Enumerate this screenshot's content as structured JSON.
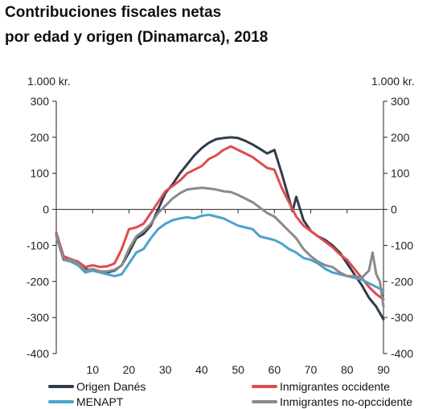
{
  "chart_data": {
    "type": "line",
    "title_line1": "Contribuciones fiscales netas",
    "title_line2": "por edad y origen (Dinamarca), 2018",
    "unit_left": "1.000 kr.",
    "unit_right": "1.000 kr.",
    "xlim": [
      0,
      90
    ],
    "ylim": [
      -400,
      300
    ],
    "x_ticks": [
      10,
      20,
      30,
      40,
      50,
      60,
      70,
      80,
      90
    ],
    "y_ticks": [
      300,
      200,
      100,
      0,
      -100,
      -200,
      -300,
      -400
    ],
    "grid": false,
    "legend_position": "bottom",
    "series": [
      {
        "name": "Origen Danés",
        "color": "#2f3d4a",
        "x": [
          0,
          2,
          4,
          6,
          8,
          10,
          12,
          14,
          16,
          18,
          20,
          22,
          24,
          26,
          28,
          30,
          32,
          34,
          36,
          38,
          40,
          42,
          44,
          46,
          48,
          50,
          52,
          54,
          56,
          58,
          60,
          62,
          64,
          65,
          66,
          68,
          70,
          72,
          74,
          76,
          78,
          80,
          82,
          84,
          86,
          88,
          90
        ],
        "y": [
          -65,
          -130,
          -140,
          -148,
          -165,
          -170,
          -172,
          -175,
          -170,
          -155,
          -120,
          -80,
          -68,
          -45,
          0,
          45,
          70,
          100,
          125,
          150,
          170,
          185,
          195,
          198,
          200,
          198,
          190,
          180,
          168,
          155,
          165,
          100,
          30,
          -5,
          35,
          -30,
          -60,
          -75,
          -85,
          -100,
          -120,
          -150,
          -180,
          -210,
          -245,
          -270,
          -305
        ]
      },
      {
        "name": "Inmigrantes occidente",
        "color": "#e04a52",
        "x": [
          0,
          2,
          4,
          6,
          8,
          10,
          12,
          14,
          16,
          18,
          20,
          22,
          24,
          26,
          28,
          30,
          32,
          34,
          36,
          38,
          40,
          42,
          44,
          46,
          48,
          50,
          52,
          54,
          56,
          58,
          60,
          62,
          64,
          66,
          68,
          70,
          72,
          74,
          76,
          78,
          80,
          82,
          84,
          86,
          88,
          90
        ],
        "y": [
          -65,
          -130,
          -138,
          -145,
          -160,
          -155,
          -160,
          -158,
          -150,
          -110,
          -55,
          -50,
          -40,
          -10,
          20,
          50,
          65,
          80,
          100,
          110,
          120,
          140,
          150,
          165,
          175,
          165,
          155,
          145,
          130,
          115,
          110,
          60,
          20,
          -20,
          -45,
          -60,
          -75,
          -90,
          -105,
          -125,
          -140,
          -165,
          -190,
          -215,
          -235,
          -250
        ]
      },
      {
        "name": "MENAPT",
        "color": "#4aa3cc",
        "x": [
          0,
          2,
          4,
          6,
          8,
          10,
          12,
          14,
          16,
          18,
          20,
          22,
          24,
          26,
          28,
          30,
          32,
          34,
          36,
          38,
          40,
          42,
          44,
          46,
          48,
          50,
          52,
          54,
          56,
          58,
          60,
          62,
          64,
          66,
          68,
          70,
          72,
          74,
          76,
          78,
          80,
          82,
          84,
          86,
          88,
          90
        ],
        "y": [
          -75,
          -140,
          -145,
          -155,
          -175,
          -170,
          -175,
          -180,
          -185,
          -180,
          -150,
          -120,
          -110,
          -80,
          -55,
          -40,
          -30,
          -25,
          -22,
          -25,
          -18,
          -15,
          -20,
          -25,
          -35,
          -45,
          -50,
          -55,
          -75,
          -80,
          -85,
          -95,
          -110,
          -120,
          -135,
          -140,
          -150,
          -165,
          -175,
          -180,
          -185,
          -190,
          -195,
          -205,
          -215,
          -225
        ]
      },
      {
        "name": "Inmigrantes no-opccidente",
        "color": "#8a8a8a",
        "x": [
          0,
          2,
          4,
          6,
          8,
          10,
          12,
          14,
          16,
          18,
          20,
          22,
          24,
          26,
          28,
          30,
          32,
          34,
          36,
          38,
          40,
          42,
          44,
          46,
          48,
          50,
          52,
          54,
          56,
          58,
          60,
          62,
          64,
          66,
          68,
          70,
          72,
          74,
          76,
          78,
          80,
          82,
          84,
          86,
          87,
          88,
          89,
          90
        ],
        "y": [
          -70,
          -140,
          -140,
          -150,
          -170,
          -165,
          -172,
          -172,
          -168,
          -155,
          -110,
          -75,
          -60,
          -40,
          -10,
          10,
          30,
          45,
          55,
          58,
          60,
          58,
          55,
          50,
          48,
          40,
          30,
          20,
          5,
          -10,
          -20,
          -40,
          -60,
          -80,
          -110,
          -130,
          -145,
          -155,
          -160,
          -175,
          -185,
          -185,
          -190,
          -170,
          -120,
          -180,
          -200,
          -270
        ]
      }
    ]
  }
}
